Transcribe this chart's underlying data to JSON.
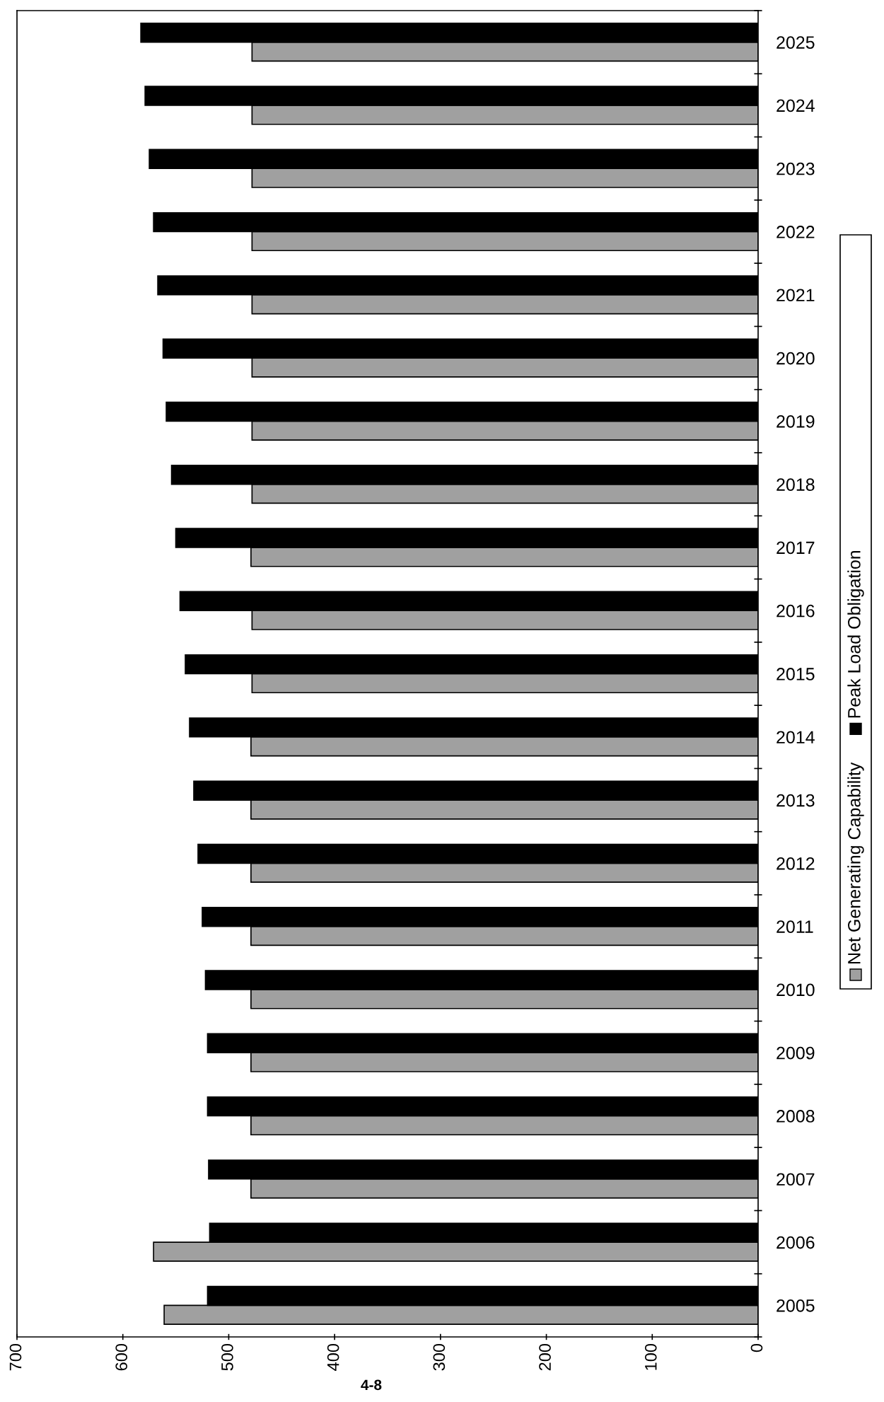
{
  "chart_data": {
    "type": "bar",
    "orientation": "horizontal",
    "categories": [
      "2025",
      "2024",
      "2023",
      "2022",
      "2021",
      "2020",
      "2019",
      "2018",
      "2017",
      "2016",
      "2015",
      "2014",
      "2013",
      "2012",
      "2011",
      "2010",
      "2009",
      "2008",
      "2007",
      "2006",
      "2005"
    ],
    "series": [
      {
        "name": "Net Generating Capability",
        "color": "#a0a0a0",
        "values": [
          478,
          478,
          478,
          478,
          478,
          478,
          478,
          478,
          479,
          478,
          478,
          479,
          479,
          479,
          479,
          479,
          479,
          479,
          479,
          571,
          561
        ]
      },
      {
        "name": "Peak Load Obligation",
        "color": "#000000",
        "values": [
          583,
          579,
          575,
          571,
          567,
          562,
          559,
          554,
          550,
          546,
          541,
          537,
          533,
          529,
          525,
          522,
          520,
          520,
          519,
          518,
          520
        ]
      }
    ],
    "xlim": [
      700,
      0
    ],
    "xticks": [
      700,
      600,
      500,
      400,
      300,
      200,
      100,
      0
    ],
    "legend": "right",
    "grid": false,
    "annotations": [
      "4-8"
    ]
  }
}
